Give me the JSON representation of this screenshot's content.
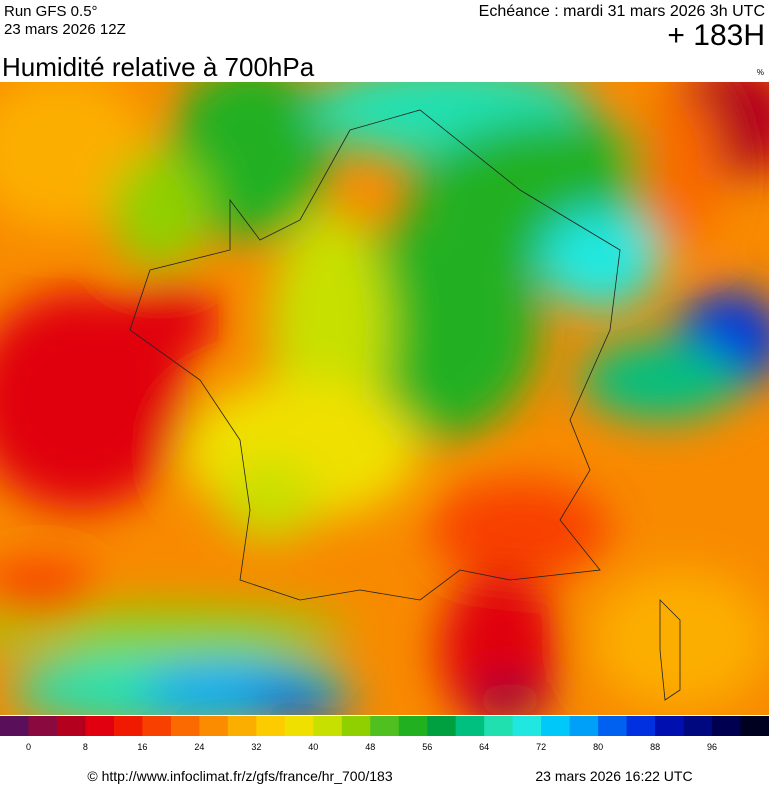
{
  "header": {
    "run": "Run GFS 0.5°",
    "run_date": "23 mars 2026 12Z",
    "echeance": "Echéance : mardi 31 mars 2026 3h UTC",
    "lead": "+ 183H"
  },
  "title": "Humidité relative à 700hPa",
  "unit": "%",
  "legend": {
    "ticks": [
      0,
      8,
      16,
      24,
      32,
      40,
      48,
      56,
      64,
      72,
      80,
      88,
      96
    ],
    "colors": [
      "#5a0f5a",
      "#8a0a40",
      "#b4001e",
      "#e00010",
      "#f01a00",
      "#f84000",
      "#fa6a00",
      "#fb8c00",
      "#fcae00",
      "#fccc00",
      "#f0e000",
      "#c8e000",
      "#90d000",
      "#50c020",
      "#20b020",
      "#00a040",
      "#00c080",
      "#20e0b0",
      "#20e8e0",
      "#00c8f8",
      "#00a0f8",
      "#0060f0",
      "#0030e0",
      "#0010b0",
      "#000880",
      "#000050",
      "#000020"
    ]
  },
  "footer": {
    "url": "© http://www.infoclimat.fr/z/gfs/france/hr_700/183",
    "stamp": "23 mars 2026 16:22 UTC"
  }
}
